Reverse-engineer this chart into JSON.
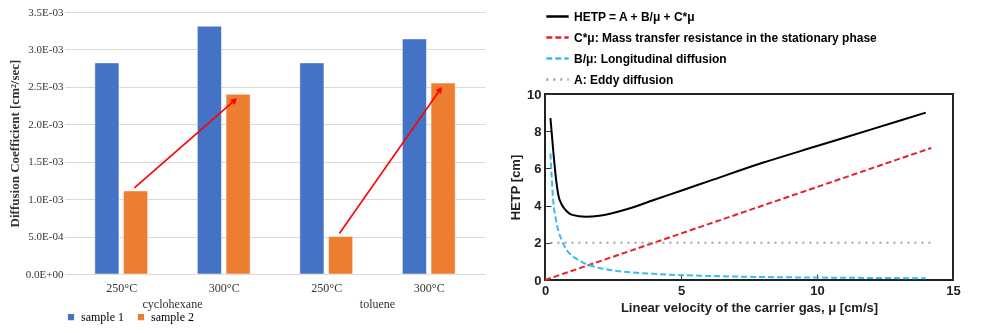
{
  "chart_data": [
    {
      "type": "bar",
      "categories": [
        "250°C",
        "300°C",
        "250°C",
        "300°C"
      ],
      "ylabel": "Diffusion Coefficient [cm²/sec]",
      "annotations": [
        "cyclohexane",
        "toluene"
      ],
      "series": [
        {
          "name": "sample 1",
          "color": "#4472c4",
          "values": [
            0.00282,
            0.00331,
            0.00282,
            0.00314
          ]
        },
        {
          "name": "sample 2",
          "color": "#ed7d31",
          "values": [
            0.00111,
            0.0024,
            0.0005,
            0.00255
          ]
        }
      ],
      "ylim": [
        0,
        0.0035
      ],
      "yticks": [
        {
          "value": 0,
          "label": "0.0E+00"
        },
        {
          "value": 0.0005,
          "label": "5.0E-04"
        },
        {
          "value": 0.001,
          "label": "1.0E-03"
        },
        {
          "value": 0.0015,
          "label": "1.5E-03"
        },
        {
          "value": 0.002,
          "label": "2.0E-03"
        },
        {
          "value": 0.0025,
          "label": "2.5E-03"
        },
        {
          "value": 0.003,
          "label": "3.0E-03"
        },
        {
          "value": 0.0035,
          "label": "3.5E-03"
        }
      ],
      "grid": "y",
      "legend": "bottom"
    },
    {
      "type": "line",
      "xlabel": "Linear velocity of the carrier gas, μ [cm/s]",
      "ylabel": "HETP [cm]",
      "series": [
        {
          "name": "HETP = A + B/μ + C*μ",
          "color": "#000000",
          "line_style": "solid",
          "x": [
            0.2,
            0.3,
            0.4,
            0.5,
            0.6,
            0.8,
            1,
            1.5,
            2,
            3,
            4,
            5,
            6,
            8,
            10,
            12,
            14
          ],
          "values": [
            8.7,
            7.0,
            5.5,
            4.5,
            4.1,
            3.7,
            3.5,
            3.4,
            3.45,
            3.8,
            4.3,
            4.8,
            5.3,
            6.3,
            7.2,
            8.1,
            9.0
          ]
        },
        {
          "name": "C*μ: Mass transfer resistance in the stationary phase",
          "color": "#e8202a",
          "line_style": "dashed",
          "x": [
            0,
            14.2
          ],
          "values": [
            0,
            7.1
          ]
        },
        {
          "name": "B/μ: Longitudinal diffusion",
          "color": "#3bbde8",
          "line_style": "dashed",
          "x": [
            0.2,
            0.3,
            0.4,
            0.5,
            0.6,
            0.8,
            1,
            1.25,
            1.5,
            2,
            2.5,
            3,
            4,
            5,
            6,
            8,
            10,
            12,
            14
          ],
          "values": [
            6.8,
            4.3,
            3.25,
            2.6,
            2.2,
            1.6,
            1.3,
            1.05,
            0.87,
            0.65,
            0.52,
            0.43,
            0.33,
            0.26,
            0.22,
            0.16,
            0.13,
            0.11,
            0.09
          ]
        },
        {
          "name": "A: Eddy diffusion",
          "color": "#a0a0a0",
          "line_style": "dotted",
          "x": [
            0.2,
            14.2
          ],
          "values": [
            2,
            2
          ]
        }
      ],
      "xlim": [
        0,
        15
      ],
      "xticks": [
        0,
        5,
        10,
        15
      ],
      "ylim": [
        0,
        10
      ],
      "yticks": [
        0,
        2,
        4,
        6,
        8,
        10
      ],
      "grid": false,
      "legend": "top"
    }
  ]
}
